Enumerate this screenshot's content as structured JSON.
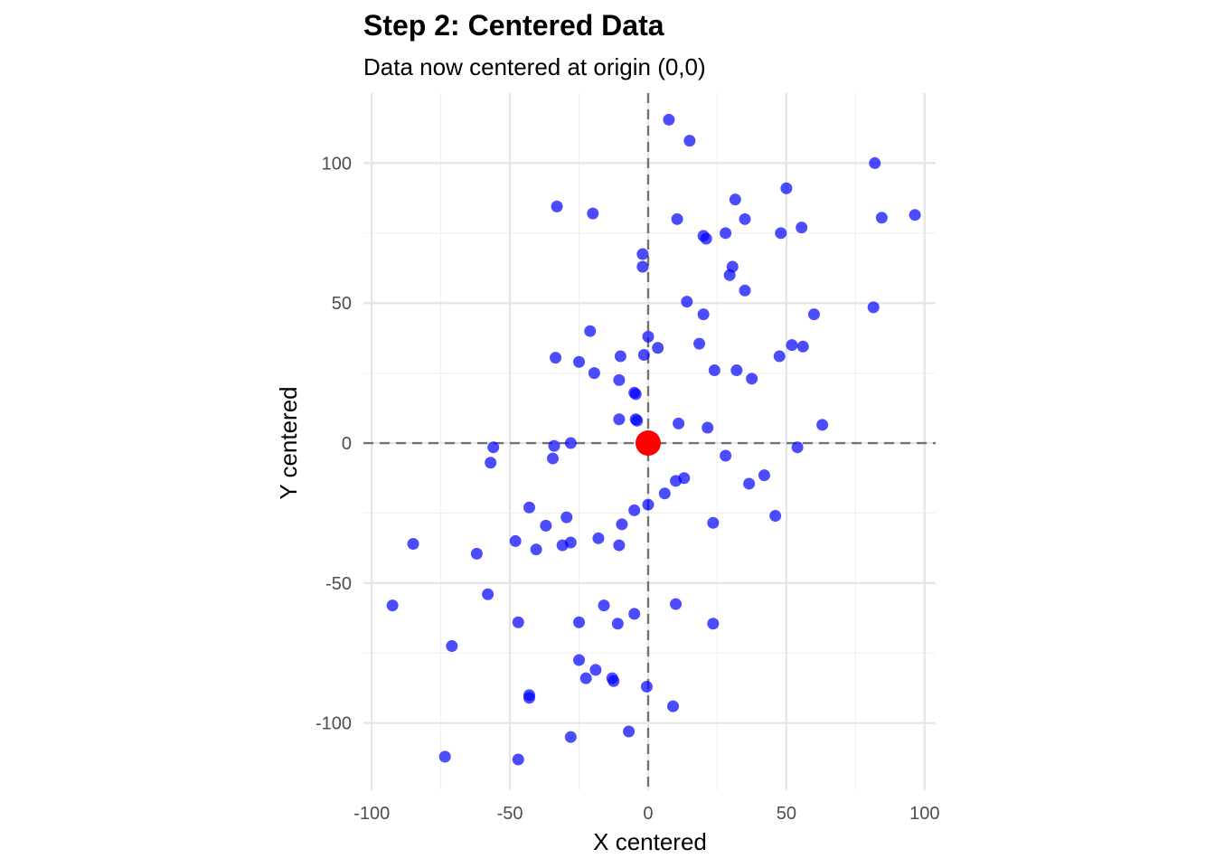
{
  "chart_data": {
    "type": "scatter",
    "title": "Step 2: Centered Data",
    "subtitle": "Data now centered at origin (0,0)",
    "xlabel": "X centered",
    "ylabel": "Y centered",
    "xlim": [
      -103,
      104
    ],
    "ylim": [
      -124,
      125
    ],
    "x_ticks": [
      -100,
      -50,
      0,
      50,
      100
    ],
    "y_ticks": [
      100,
      50,
      0,
      -50,
      -100
    ],
    "x_tick_labels": [
      "-100",
      "-50",
      "0",
      "50",
      "100"
    ],
    "y_tick_labels": [
      "100",
      "50",
      "0",
      "-50",
      "-100"
    ],
    "grid": true,
    "reference_lines": {
      "x": 0,
      "y": 0,
      "style": "dashed"
    },
    "colors": {
      "points": "#0000ff",
      "origin": "#ff0000"
    },
    "origin_point": {
      "x": 0,
      "y": 0
    },
    "points": [
      {
        "x": 7.5,
        "y": 115.5
      },
      {
        "x": 15,
        "y": 108
      },
      {
        "x": -33,
        "y": 84.5
      },
      {
        "x": -20,
        "y": 82
      },
      {
        "x": 10.5,
        "y": 80
      },
      {
        "x": 31.5,
        "y": 87
      },
      {
        "x": 50,
        "y": 91
      },
      {
        "x": 82,
        "y": 100
      },
      {
        "x": 84.5,
        "y": 80.5
      },
      {
        "x": 96.5,
        "y": 81.5
      },
      {
        "x": 35,
        "y": 80
      },
      {
        "x": 20,
        "y": 74
      },
      {
        "x": 21,
        "y": 73
      },
      {
        "x": 28,
        "y": 75
      },
      {
        "x": 48,
        "y": 75
      },
      {
        "x": 55.5,
        "y": 77
      },
      {
        "x": -2,
        "y": 67.5
      },
      {
        "x": -2,
        "y": 63
      },
      {
        "x": 30.5,
        "y": 63
      },
      {
        "x": 29.5,
        "y": 60
      },
      {
        "x": 35,
        "y": 54.5
      },
      {
        "x": 14,
        "y": 50.5
      },
      {
        "x": 20,
        "y": 46
      },
      {
        "x": 60,
        "y": 46
      },
      {
        "x": 81.5,
        "y": 48.5
      },
      {
        "x": -21,
        "y": 40
      },
      {
        "x": 0,
        "y": 38
      },
      {
        "x": 3.5,
        "y": 34
      },
      {
        "x": 18.5,
        "y": 35.5
      },
      {
        "x": 52,
        "y": 35
      },
      {
        "x": 56,
        "y": 34.5
      },
      {
        "x": -33.5,
        "y": 30.5
      },
      {
        "x": -25,
        "y": 29
      },
      {
        "x": -10,
        "y": 31
      },
      {
        "x": -1.5,
        "y": 31.5
      },
      {
        "x": 47.5,
        "y": 31
      },
      {
        "x": -19.5,
        "y": 25
      },
      {
        "x": 24,
        "y": 26
      },
      {
        "x": 32,
        "y": 26
      },
      {
        "x": 37.5,
        "y": 23
      },
      {
        "x": -10.5,
        "y": 22.5
      },
      {
        "x": -5,
        "y": 18
      },
      {
        "x": -4.5,
        "y": 17.5
      },
      {
        "x": -10.5,
        "y": 8.5
      },
      {
        "x": -4.5,
        "y": 8.5
      },
      {
        "x": -4,
        "y": 8
      },
      {
        "x": 11,
        "y": 7
      },
      {
        "x": 21.5,
        "y": 5.5
      },
      {
        "x": 63,
        "y": 6.5
      },
      {
        "x": -56,
        "y": -1.5
      },
      {
        "x": -34,
        "y": -1
      },
      {
        "x": -28,
        "y": 0
      },
      {
        "x": 54,
        "y": -1.5
      },
      {
        "x": -57,
        "y": -7
      },
      {
        "x": -34.5,
        "y": -5.5
      },
      {
        "x": 28,
        "y": -4.5
      },
      {
        "x": 42,
        "y": -11.5
      },
      {
        "x": 10,
        "y": -13.5
      },
      {
        "x": 13,
        "y": -12.5
      },
      {
        "x": 36.5,
        "y": -14.5
      },
      {
        "x": 6,
        "y": -18
      },
      {
        "x": 0,
        "y": -22
      },
      {
        "x": -5,
        "y": -24
      },
      {
        "x": -43,
        "y": -23
      },
      {
        "x": -29.5,
        "y": -26.5
      },
      {
        "x": 46,
        "y": -26
      },
      {
        "x": -37,
        "y": -29.5
      },
      {
        "x": -9.5,
        "y": -29
      },
      {
        "x": 23.5,
        "y": -28.5
      },
      {
        "x": -85,
        "y": -36
      },
      {
        "x": -48,
        "y": -35
      },
      {
        "x": -18,
        "y": -34
      },
      {
        "x": -28,
        "y": -35.5
      },
      {
        "x": -31,
        "y": -36.5
      },
      {
        "x": -10.5,
        "y": -36.5
      },
      {
        "x": -40.5,
        "y": -38
      },
      {
        "x": -62,
        "y": -39.5
      },
      {
        "x": -58,
        "y": -54
      },
      {
        "x": -92.5,
        "y": -58
      },
      {
        "x": -16,
        "y": -58
      },
      {
        "x": 10,
        "y": -57.5
      },
      {
        "x": -5,
        "y": -61
      },
      {
        "x": -47,
        "y": -64
      },
      {
        "x": -25,
        "y": -64
      },
      {
        "x": -11,
        "y": -64.5
      },
      {
        "x": 23.5,
        "y": -64.5
      },
      {
        "x": -71,
        "y": -72.5
      },
      {
        "x": -25,
        "y": -77.5
      },
      {
        "x": -19,
        "y": -81
      },
      {
        "x": -22.5,
        "y": -84
      },
      {
        "x": -13,
        "y": -84
      },
      {
        "x": -12.5,
        "y": -85
      },
      {
        "x": -0.5,
        "y": -87
      },
      {
        "x": -43,
        "y": -90
      },
      {
        "x": -43,
        "y": -91
      },
      {
        "x": 9,
        "y": -94
      },
      {
        "x": -7,
        "y": -103
      },
      {
        "x": -28,
        "y": -105
      },
      {
        "x": -73.5,
        "y": -112
      },
      {
        "x": -47,
        "y": -113
      }
    ]
  }
}
